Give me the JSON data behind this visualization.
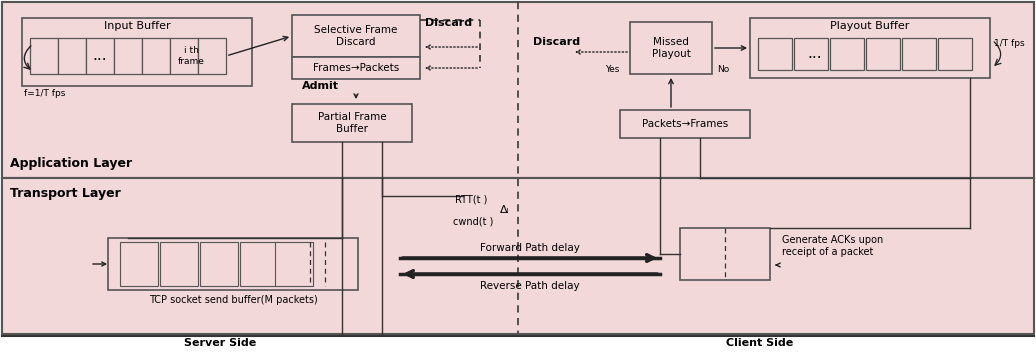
{
  "bg_pink": "#f2d8d8",
  "border_dark": "#333333",
  "arrow_color": "#222222",
  "fig_w": 10.36,
  "fig_h": 3.54,
  "dpi": 100,
  "app_label": "Application Layer",
  "transport_label": "Transport Layer",
  "server_label": "Server Side",
  "client_label": "Client Side",
  "input_buffer_label": "Input Buffer",
  "sfd_label": "Selective Frame\nDiscard",
  "fp_label": "Frames→Packets",
  "admit_label": "Admit",
  "discard_label": "Discard",
  "pfb_label": "Partial Frame\nBuffer",
  "playout_label": "Playout Buffer",
  "missed_label": "Missed\nPlayout",
  "pf_label": "Packets→Frames",
  "rtt_label": "RTT(t )",
  "delta_label": "Δᵢ",
  "cwnd_label": "cwnd(t )",
  "tcp_label": "TCP socket send buffer(M packets)",
  "fwd_label": "Forward Path delay",
  "rev_label": "Reverse Path delay",
  "ack_label": "Generate ACKs upon\nreceipt of a packet",
  "fps_in": "f=1/T fps",
  "fps_out": "1/T fps",
  "yes_label": "Yes",
  "no_label": "No",
  "ith_label": "i th\nframe",
  "dots": "..."
}
